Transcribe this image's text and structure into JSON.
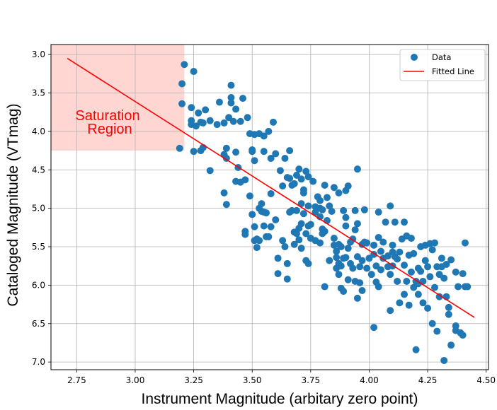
{
  "chart_data": {
    "type": "scatter",
    "title": "",
    "xlabel": "Instrument Magnitude (arbitary zero point)",
    "ylabel": "Cataloged Magnitude (VTmag)",
    "xlim": [
      2.64,
      4.51
    ],
    "ylim": [
      7.1,
      2.87
    ],
    "y_inverted": true,
    "grid": true,
    "x_ticks": [
      "2.75",
      "3.00",
      "3.25",
      "3.50",
      "3.75",
      "4.00",
      "4.25",
      "4.50"
    ],
    "y_ticks": [
      "3.0",
      "3.5",
      "4.0",
      "4.5",
      "5.0",
      "5.5",
      "6.0",
      "6.5",
      "7.0"
    ],
    "legend": {
      "position": "top-right",
      "entries": [
        "Data",
        "Fitted Line"
      ]
    },
    "colors": {
      "data": "#1f77b4",
      "fit": "#ff0000",
      "region": "#ffd6d2",
      "grid": "#b0b0b0",
      "annotation": "#ff0000"
    },
    "region": {
      "label_line1": "Saturation",
      "label_line2": "Region",
      "x_range": [
        2.64,
        3.21
      ],
      "y_range": [
        2.87,
        4.25
      ]
    },
    "fit_line": {
      "x": [
        2.71,
        4.45
      ],
      "y": [
        3.05,
        6.42
      ]
    },
    "series": [
      {
        "name": "Data",
        "points": [
          [
            3.19,
            4.22
          ],
          [
            3.2,
            3.38
          ],
          [
            3.2,
            3.64
          ],
          [
            3.21,
            3.13
          ],
          [
            3.25,
            3.22
          ],
          [
            3.24,
            3.69
          ],
          [
            3.24,
            3.86
          ],
          [
            3.24,
            3.91
          ],
          [
            3.25,
            4.26
          ],
          [
            3.26,
            3.93
          ],
          [
            3.27,
            3.76
          ],
          [
            3.28,
            3.88
          ],
          [
            3.29,
            3.89
          ],
          [
            3.28,
            4.25
          ],
          [
            3.29,
            4.21
          ],
          [
            3.3,
            3.72
          ],
          [
            3.32,
            3.86
          ],
          [
            3.32,
            4.51
          ],
          [
            3.35,
            3.91
          ],
          [
            3.36,
            3.62
          ],
          [
            3.38,
            3.89
          ],
          [
            3.38,
            4.3
          ],
          [
            3.39,
            4.22
          ],
          [
            3.39,
            4.35
          ],
          [
            3.38,
            4.8
          ],
          [
            3.39,
            4.95
          ],
          [
            3.4,
            3.82
          ],
          [
            3.41,
            3.4
          ],
          [
            3.41,
            3.56
          ],
          [
            3.41,
            3.63
          ],
          [
            3.42,
            3.87
          ],
          [
            3.43,
            3.71
          ],
          [
            3.43,
            4.27
          ],
          [
            3.43,
            4.65
          ],
          [
            3.44,
            4.47
          ],
          [
            3.45,
            4.66
          ],
          [
            3.45,
            3.87
          ],
          [
            3.46,
            3.57
          ],
          [
            3.47,
            4.63
          ],
          [
            3.47,
            5.3
          ],
          [
            3.47,
            5.34
          ],
          [
            3.48,
            3.82
          ],
          [
            3.49,
            4.84
          ],
          [
            3.49,
            4.03
          ],
          [
            3.5,
            4.24
          ],
          [
            3.5,
            4.26
          ],
          [
            3.5,
            5.08
          ],
          [
            3.51,
            4.38
          ],
          [
            3.51,
            4.04
          ],
          [
            3.51,
            5.42
          ],
          [
            3.51,
            5.24
          ],
          [
            3.52,
            5.4
          ],
          [
            3.52,
            5.51
          ],
          [
            3.53,
            5.42
          ],
          [
            3.53,
            5.0
          ],
          [
            3.53,
            4.03
          ],
          [
            3.54,
            4.94
          ],
          [
            3.54,
            5.04
          ],
          [
            3.55,
            5.05
          ],
          [
            3.55,
            5.23
          ],
          [
            3.55,
            4.26
          ],
          [
            3.55,
            4.06
          ],
          [
            3.56,
            5.06
          ],
          [
            3.56,
            5.37
          ],
          [
            3.57,
            4.0
          ],
          [
            3.57,
            5.37
          ],
          [
            3.58,
            4.35
          ],
          [
            3.58,
            4.81
          ],
          [
            3.58,
            5.24
          ],
          [
            3.59,
            3.88
          ],
          [
            3.6,
            5.15
          ],
          [
            3.6,
            4.29
          ],
          [
            3.61,
            5.65
          ],
          [
            3.61,
            5.85
          ],
          [
            3.62,
            4.51
          ],
          [
            3.63,
            4.71
          ],
          [
            3.63,
            5.42
          ],
          [
            3.64,
            4.35
          ],
          [
            3.64,
            5.5
          ],
          [
            3.65,
            4.6
          ],
          [
            3.65,
            5.72
          ],
          [
            3.65,
            5.92
          ],
          [
            3.66,
            4.61
          ],
          [
            3.66,
            5.05
          ],
          [
            3.66,
            4.25
          ],
          [
            3.67,
            4.7
          ],
          [
            3.67,
            5.03
          ],
          [
            3.68,
            4.68
          ],
          [
            3.68,
            5.31
          ],
          [
            3.68,
            5.47
          ],
          [
            3.69,
            4.57
          ],
          [
            3.69,
            5.33
          ],
          [
            3.69,
            5.03
          ],
          [
            3.7,
            4.49
          ],
          [
            3.7,
            5.41
          ],
          [
            3.7,
            5.26
          ],
          [
            3.71,
            4.62
          ],
          [
            3.71,
            5.2
          ],
          [
            3.71,
            5.52
          ],
          [
            3.71,
            4.94
          ],
          [
            3.72,
            4.76
          ],
          [
            3.72,
            4.8
          ],
          [
            3.72,
            5.07
          ],
          [
            3.73,
            5.33
          ],
          [
            3.73,
            5.68
          ],
          [
            3.73,
            4.52
          ],
          [
            3.74,
            4.59
          ],
          [
            3.74,
            4.97
          ],
          [
            3.74,
            5.23
          ],
          [
            3.74,
            5.72
          ],
          [
            3.75,
            5.39
          ],
          [
            3.75,
            5.21
          ],
          [
            3.76,
            4.65
          ],
          [
            3.77,
            5.05
          ],
          [
            3.77,
            5.42
          ],
          [
            3.77,
            4.98
          ],
          [
            3.78,
            4.85
          ],
          [
            3.79,
            5.0
          ],
          [
            3.79,
            5.11
          ],
          [
            3.79,
            4.9
          ],
          [
            3.79,
            5.45
          ],
          [
            3.8,
            5.02
          ],
          [
            3.8,
            5.27
          ],
          [
            3.8,
            5.33
          ],
          [
            3.81,
            4.7
          ],
          [
            3.81,
            5.3
          ],
          [
            3.81,
            6.02
          ],
          [
            3.82,
            4.86
          ],
          [
            3.82,
            5.16
          ],
          [
            3.83,
            4.97
          ],
          [
            3.83,
            5.68
          ],
          [
            3.84,
            5.04
          ],
          [
            3.85,
            4.73
          ],
          [
            3.85,
            5.39
          ],
          [
            3.85,
            5.48
          ],
          [
            3.86,
            5.56
          ],
          [
            3.86,
            5.64
          ],
          [
            3.86,
            5.78
          ],
          [
            3.87,
            4.8
          ],
          [
            3.87,
            5.47
          ],
          [
            3.87,
            5.72
          ],
          [
            3.87,
            5.86
          ],
          [
            3.88,
            6.04
          ],
          [
            3.88,
            5.5
          ],
          [
            3.88,
            5.75
          ],
          [
            3.89,
            5.03
          ],
          [
            3.89,
            5.65
          ],
          [
            3.89,
            6.08
          ],
          [
            3.9,
            4.77
          ],
          [
            3.9,
            5.12
          ],
          [
            3.9,
            5.23
          ],
          [
            3.9,
            5.64
          ],
          [
            3.91,
            4.71
          ],
          [
            3.91,
            5.52
          ],
          [
            3.91,
            5.93
          ],
          [
            3.92,
            5.44
          ],
          [
            3.92,
            5.72
          ],
          [
            3.93,
            5.4
          ],
          [
            3.93,
            5.78
          ],
          [
            3.94,
            5.03
          ],
          [
            3.94,
            5.28
          ],
          [
            3.94,
            5.95
          ],
          [
            3.95,
            4.49
          ],
          [
            3.95,
            5.2
          ],
          [
            3.95,
            5.63
          ],
          [
            3.95,
            6.17
          ],
          [
            3.96,
            5.76
          ],
          [
            3.96,
            5.97
          ],
          [
            3.97,
            5.47
          ],
          [
            3.97,
            5.68
          ],
          [
            3.97,
            6.07
          ],
          [
            3.98,
            5.02
          ],
          [
            3.98,
            5.44
          ],
          [
            3.99,
            5.78
          ],
          [
            3.99,
            5.45
          ],
          [
            4.0,
            5.65
          ],
          [
            4.01,
            5.86
          ],
          [
            4.02,
            5.48
          ],
          [
            4.02,
            5.6
          ],
          [
            4.02,
            6.55
          ],
          [
            4.03,
            5.75
          ],
          [
            4.03,
            5.96
          ],
          [
            4.04,
            5.05
          ],
          [
            4.04,
            5.38
          ],
          [
            4.04,
            6.02
          ],
          [
            4.05,
            5.56
          ],
          [
            4.05,
            5.8
          ],
          [
            4.06,
            5.44
          ],
          [
            4.06,
            5.65
          ],
          [
            4.07,
            5.18
          ],
          [
            4.08,
            5.62
          ],
          [
            4.08,
            5.76
          ],
          [
            4.09,
            5.86
          ],
          [
            4.09,
            4.97
          ],
          [
            4.09,
            6.33
          ],
          [
            4.1,
            5.48
          ],
          [
            4.1,
            5.57
          ],
          [
            4.1,
            5.75
          ],
          [
            4.11,
            5.18
          ],
          [
            4.11,
            5.63
          ],
          [
            4.12,
            5.66
          ],
          [
            4.12,
            5.95
          ],
          [
            4.13,
            6.23
          ],
          [
            4.13,
            5.57
          ],
          [
            4.14,
            5.4
          ],
          [
            4.15,
            5.18
          ],
          [
            4.15,
            6.12
          ],
          [
            4.15,
            5.74
          ],
          [
            4.16,
            5.36
          ],
          [
            4.16,
            5.95
          ],
          [
            4.17,
            5.61
          ],
          [
            4.17,
            6.26
          ],
          [
            4.18,
            5.39
          ],
          [
            4.18,
            5.83
          ],
          [
            4.19,
            5.59
          ],
          [
            4.19,
            6.03
          ],
          [
            4.2,
            5.95
          ],
          [
            4.2,
            6.84
          ],
          [
            4.21,
            5.78
          ],
          [
            4.21,
            5.98
          ],
          [
            4.21,
            6.12
          ],
          [
            4.22,
            5.5
          ],
          [
            4.22,
            5.82
          ],
          [
            4.23,
            6.23
          ],
          [
            4.23,
            5.95
          ],
          [
            4.24,
            5.48
          ],
          [
            4.24,
            5.68
          ],
          [
            4.25,
            6.3
          ],
          [
            4.25,
            5.76
          ],
          [
            4.26,
            5.46
          ],
          [
            4.26,
            5.89
          ],
          [
            4.27,
            5.54
          ],
          [
            4.27,
            6.5
          ],
          [
            4.28,
            5.45
          ],
          [
            4.28,
            6.03
          ],
          [
            4.29,
            5.76
          ],
          [
            4.29,
            6.6
          ],
          [
            4.3,
            5.86
          ],
          [
            4.3,
            6.15
          ],
          [
            4.31,
            5.65
          ],
          [
            4.31,
            5.76
          ],
          [
            4.32,
            5.91
          ],
          [
            4.32,
            6.98
          ],
          [
            4.33,
            5.73
          ],
          [
            4.33,
            6.15
          ],
          [
            4.34,
            6.29
          ],
          [
            4.34,
            6.38
          ],
          [
            4.35,
            5.67
          ],
          [
            4.35,
            6.78
          ],
          [
            4.37,
            5.83
          ],
          [
            4.37,
            6.53
          ],
          [
            4.37,
            6.59
          ],
          [
            4.38,
            6.02
          ],
          [
            4.39,
            6.62
          ],
          [
            4.4,
            5.85
          ],
          [
            4.4,
            6.65
          ],
          [
            4.41,
            6.02
          ],
          [
            4.41,
            5.45
          ],
          [
            4.42,
            6.02
          ]
        ]
      },
      {
        "name": "Fitted Line",
        "x": [
          2.71,
          4.45
        ],
        "y": [
          3.05,
          6.42
        ]
      }
    ]
  }
}
